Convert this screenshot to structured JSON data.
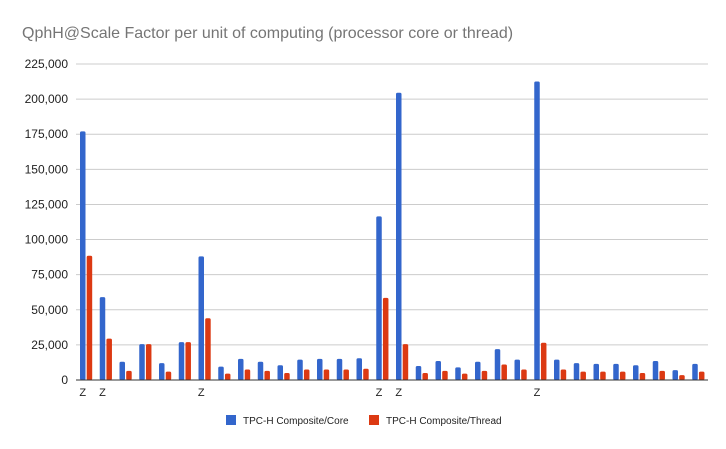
{
  "chart_data": {
    "type": "bar",
    "title": "QphH@Scale Factor per unit of computing (processor core or thread)",
    "xlabel": "",
    "ylabel": "",
    "ylim": [
      0,
      225000
    ],
    "yticks": [
      0,
      25000,
      50000,
      75000,
      100000,
      125000,
      150000,
      175000,
      200000,
      225000
    ],
    "ytick_labels": [
      "0",
      "25,000",
      "50,000",
      "75,000",
      "100,000",
      "125,000",
      "150,000",
      "175,000",
      "200,000",
      "225,000"
    ],
    "grid": true,
    "legend_position": "bottom",
    "categories": [
      "Z",
      "Z",
      "",
      "",
      "",
      "",
      "Z",
      "",
      "",
      "",
      "",
      "",
      "",
      "",
      "",
      "Z",
      "Z",
      "",
      "",
      "",
      "",
      "",
      "",
      "Z",
      "",
      "",
      "",
      "",
      "",
      "",
      "",
      ""
    ],
    "series": [
      {
        "name": "TPC-H Composite/Core",
        "color": "#3366cc",
        "values": [
          177000,
          59000,
          13000,
          25500,
          12000,
          27000,
          88000,
          9500,
          15000,
          13000,
          10500,
          14500,
          15000,
          15000,
          15500,
          116500,
          204500,
          10000,
          13500,
          9000,
          13000,
          22000,
          14500,
          212500,
          14500,
          12000,
          11500,
          11500,
          10500,
          13500,
          7000,
          11500
        ]
      },
      {
        "name": "TPC-H Composite/Thread",
        "color": "#dc3912",
        "values": [
          88500,
          29500,
          6500,
          25500,
          6000,
          27000,
          44000,
          4500,
          7500,
          6500,
          5000,
          7500,
          7500,
          7500,
          8000,
          58500,
          25500,
          5000,
          6500,
          4500,
          6500,
          11000,
          7500,
          26500,
          7500,
          6000,
          6000,
          6000,
          5000,
          6500,
          3500,
          6000
        ]
      }
    ]
  }
}
